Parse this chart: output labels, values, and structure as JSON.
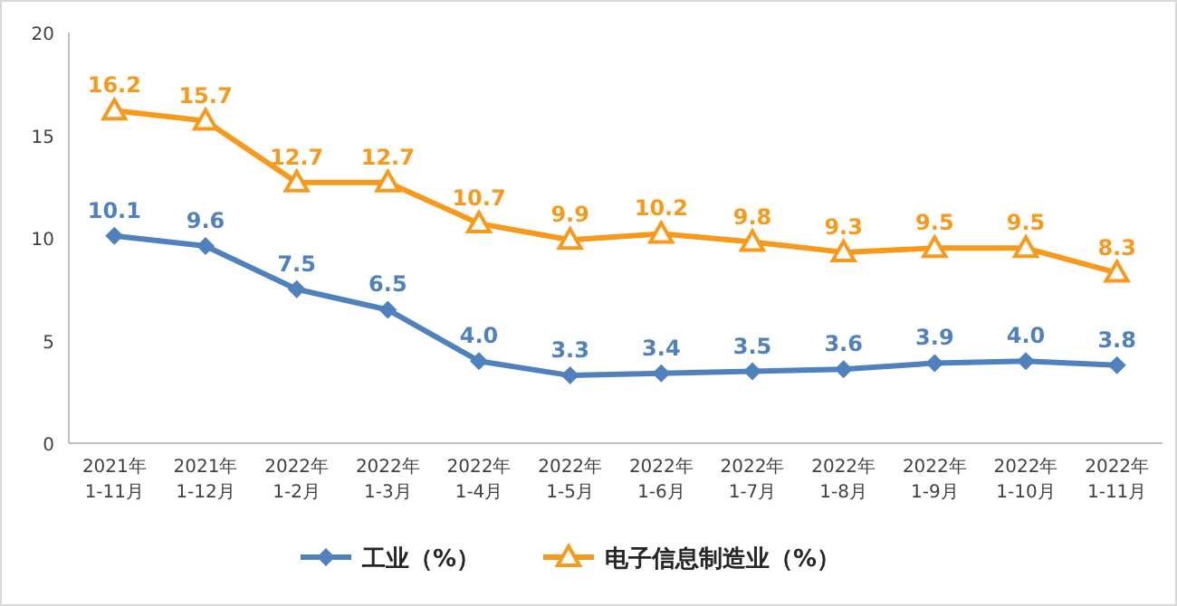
{
  "chart_data": {
    "type": "line",
    "categories": [
      "2021年\n1-11月",
      "2021年\n1-12月",
      "2022年\n1-2月",
      "2022年\n1-3月",
      "2022年\n1-4月",
      "2022年\n1-5月",
      "2022年\n1-6月",
      "2022年\n1-7月",
      "2022年\n1-8月",
      "2022年\n1-9月",
      "2022年\n1-10月",
      "2022年\n1-11月"
    ],
    "series": [
      {
        "name": "工业（%）",
        "color": "#4f81bd",
        "marker": "diamond",
        "values": [
          10.1,
          9.6,
          7.5,
          6.5,
          4.0,
          3.3,
          3.4,
          3.5,
          3.6,
          3.9,
          4.0,
          3.8
        ],
        "value_labels": [
          "10.1",
          "9.6",
          "7.5",
          "6.5",
          "4.0",
          "3.3",
          "3.4",
          "3.5",
          "3.6",
          "3.9",
          "4.0",
          "3.8"
        ]
      },
      {
        "name": "电子信息制造业（%）",
        "color": "#f79a1c",
        "marker": "triangle",
        "values": [
          16.2,
          15.7,
          12.7,
          12.7,
          10.7,
          9.9,
          10.2,
          9.8,
          9.3,
          9.5,
          9.5,
          8.3
        ],
        "value_labels": [
          "16.2",
          "15.7",
          "12.7",
          "12.7",
          "10.7",
          "9.9",
          "10.2",
          "9.8",
          "9.3",
          "9.5",
          "9.5",
          "8.3"
        ]
      }
    ],
    "ylim": [
      0,
      20
    ],
    "yticks": [
      0,
      5,
      10,
      15,
      20
    ],
    "grid": false,
    "legend": "bottom",
    "line_style": "solid"
  }
}
